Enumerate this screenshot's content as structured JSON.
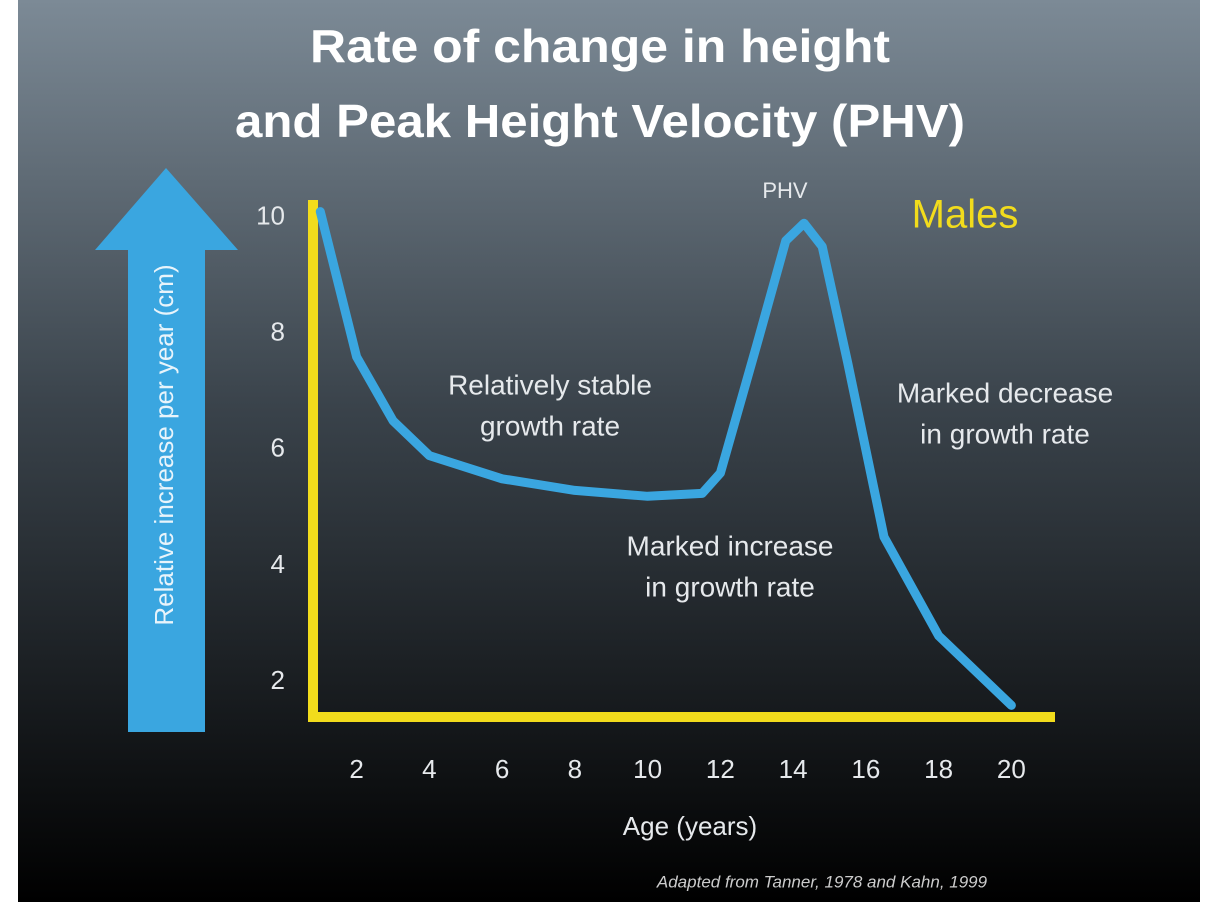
{
  "chart_data": {
    "type": "line",
    "title": [
      "Rate of change in height",
      "and Peak Height Velocity (PHV)"
    ],
    "x_label": "Age (years)",
    "y_label": "Relative increase per year (cm)",
    "legend_label": "Males",
    "source": "Adapted from Tanner, 1978 and Kahn, 1999",
    "annotations": [
      {
        "text": [
          "PHV"
        ]
      },
      {
        "text": [
          "Relatively stable",
          "growth rate"
        ]
      },
      {
        "text": [
          "Marked increase",
          "in growth rate"
        ]
      },
      {
        "text": [
          "Marked decrease",
          "in growth rate"
        ]
      }
    ],
    "x": [
      1,
      2,
      3,
      4,
      6,
      8,
      10,
      11.5,
      12,
      13,
      13.8,
      14.3,
      14.8,
      15.5,
      16.5,
      18,
      20
    ],
    "series": [
      {
        "name": "Males",
        "color": "#3aa6e0",
        "values": [
          10.1,
          7.6,
          6.5,
          5.9,
          5.5,
          5.3,
          5.2,
          5.25,
          5.6,
          7.8,
          9.6,
          9.9,
          9.5,
          7.5,
          4.5,
          2.8,
          1.6
        ]
      }
    ],
    "axis_color": "#f2dc1c",
    "xlim": [
      0.8,
      21.2
    ],
    "ylim": [
      1.4,
      10.3
    ],
    "xticks": [
      2,
      4,
      6,
      8,
      10,
      12,
      14,
      16,
      18,
      20
    ],
    "yticks": [
      2,
      4,
      6,
      8,
      10
    ],
    "grid": false
  }
}
